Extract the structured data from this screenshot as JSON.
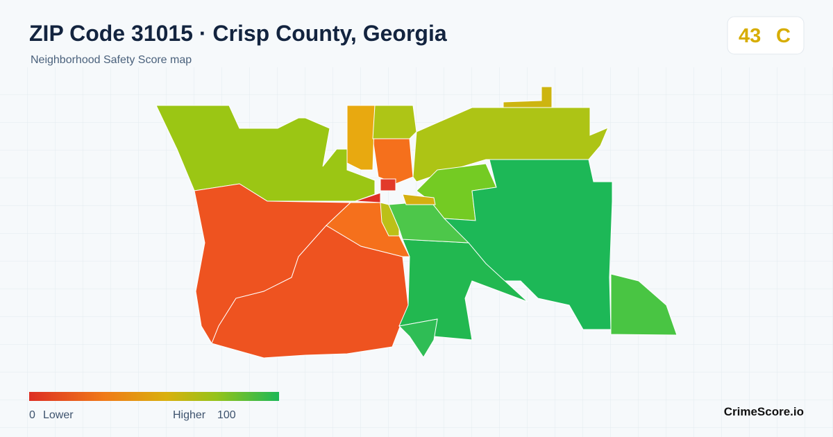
{
  "header": {
    "title": "ZIP Code 31015 · Crisp County, Georgia",
    "subtitle": "Neighborhood Safety Score map"
  },
  "score": {
    "value": "43",
    "grade": "C"
  },
  "legend": {
    "min": "0",
    "min_label": "Lower",
    "max_label": "Higher",
    "max": "100"
  },
  "brand": "CrimeScore.io"
}
